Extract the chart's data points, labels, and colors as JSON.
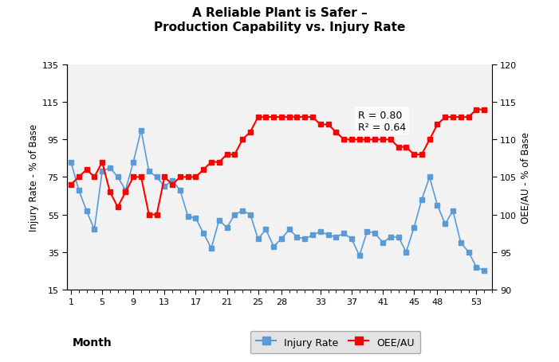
{
  "title_line1": "A Reliable Plant is Safer –",
  "title_line2": "Production Capability vs. Injury Rate",
  "xlabel": "Month",
  "ylabel_left": "Injury Rate - % of Base",
  "ylabel_right": "OEE/AU - % of Base",
  "annotation": "R = 0.80\nR² = 0.64",
  "x_ticks": [
    1,
    5,
    9,
    13,
    17,
    21,
    25,
    28,
    33,
    37,
    41,
    45,
    48,
    53
  ],
  "ylim_left": [
    15,
    135
  ],
  "ylim_right": [
    90,
    120
  ],
  "yticks_left": [
    15,
    35,
    55,
    75,
    95,
    115,
    135
  ],
  "yticks_right": [
    90,
    95,
    100,
    105,
    110,
    115,
    120
  ],
  "injury_rate_color": "#5B9BD5",
  "oee_au_color": "#FF0000",
  "legend_bg": "#DCDCDC",
  "background_color": "#F2F2F2",
  "injury_rate": [
    83,
    68,
    57,
    47,
    78,
    80,
    75,
    68,
    83,
    100,
    78,
    75,
    70,
    73,
    68,
    54,
    53,
    45,
    37,
    52,
    48,
    55,
    57,
    55,
    42,
    47,
    38,
    42,
    47,
    43,
    42,
    44,
    46,
    44,
    43,
    45,
    42,
    33,
    46,
    45,
    40,
    43,
    43,
    35,
    48,
    63,
    75,
    60,
    50,
    57,
    40,
    35,
    27,
    25
  ],
  "oee_au": [
    104,
    105,
    106,
    105,
    107,
    103,
    101,
    103,
    105,
    105,
    100,
    100,
    105,
    104,
    105,
    105,
    105,
    106,
    107,
    107,
    108,
    108,
    110,
    111,
    113,
    113,
    113,
    113,
    113,
    113,
    113,
    113,
    112,
    112,
    111,
    110,
    110,
    110,
    110,
    110,
    110,
    110,
    109,
    109,
    108,
    108,
    110,
    112,
    113,
    113,
    113,
    113,
    114,
    114
  ]
}
